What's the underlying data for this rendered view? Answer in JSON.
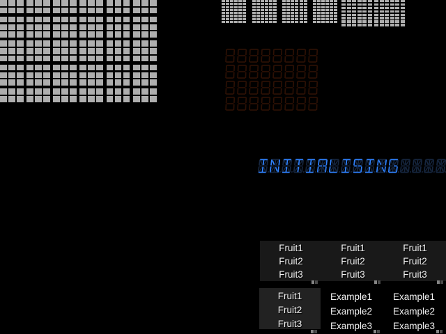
{
  "colors": {
    "background": "#000000",
    "led_on": "#aeaeae",
    "sevenseg_ghost": "#2c1004",
    "alphanum_lit": "#2f82ff",
    "alphanum_ghost": "#16263f",
    "list_strip_bg": "#191919",
    "list_panel_bg": "#222222",
    "list_text": "#f2f2f2"
  },
  "led_matrix_large": {
    "rows": 13,
    "cols": 18,
    "group_size": 3,
    "state": "all-on"
  },
  "led_matrix_center": {
    "blocks": 4,
    "rows": 8,
    "cols": 6,
    "state": "all-on"
  },
  "led_matrix_right": {
    "blocks": 2,
    "rows": 8,
    "cols": 6,
    "state": "all-on"
  },
  "sevenseg_display": {
    "rows": 4,
    "cols": 8,
    "value": "",
    "state": "all-segments-off"
  },
  "alphanum_display": {
    "length": 16,
    "text": "INITIALISING"
  },
  "lists": {
    "top_columns": [
      {
        "items": [
          "Fruit1",
          "Fruit2",
          "Fruit3"
        ]
      },
      {
        "items": [
          "Fruit1",
          "Fruit2",
          "Fruit3"
        ]
      },
      {
        "items": [
          "Fruit1",
          "Fruit2",
          "Fruit3"
        ]
      }
    ],
    "bottom_fruit": {
      "items": [
        "Fruit1",
        "Fruit2",
        "Fruit3"
      ]
    },
    "bottom_examples": [
      {
        "items": [
          "Example1",
          "Example2",
          "Example3"
        ]
      },
      {
        "items": [
          "Example1",
          "Example2",
          "Example3"
        ]
      }
    ]
  }
}
